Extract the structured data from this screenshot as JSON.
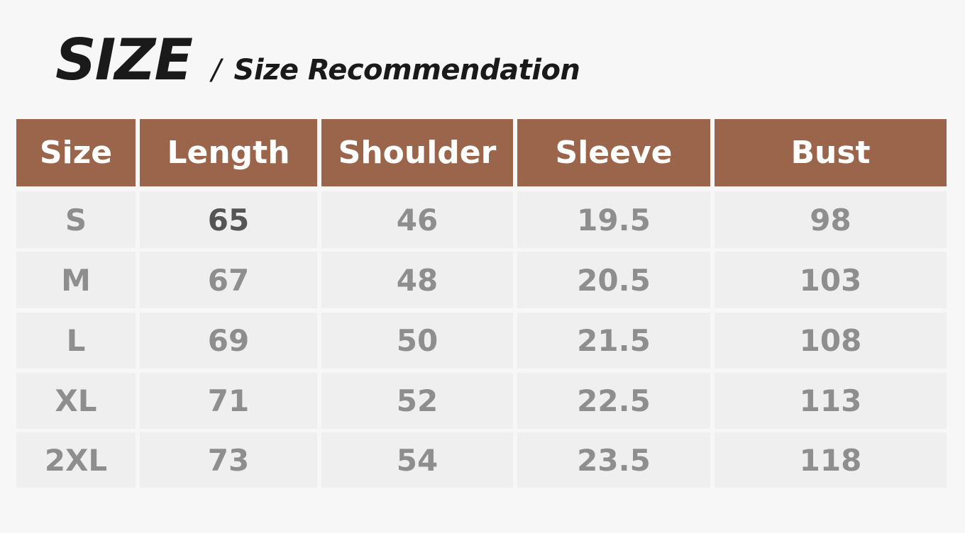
{
  "title": {
    "main": "SIZE",
    "separator": "/",
    "subtitle": "Size Recommendation"
  },
  "colors": {
    "header_bg": "#9a654a",
    "cell_bg": "#efefef",
    "text_gray": "#8e8e8e"
  },
  "table": {
    "headers": [
      "Size",
      "Length",
      "Shoulder",
      "Sleeve",
      "Bust"
    ],
    "rows": [
      [
        "S",
        "65",
        "46",
        "19.5",
        "98"
      ],
      [
        "M",
        "67",
        "48",
        "20.5",
        "103"
      ],
      [
        "L",
        "69",
        "50",
        "21.5",
        "108"
      ],
      [
        "XL",
        "71",
        "52",
        "22.5",
        "113"
      ],
      [
        "2XL",
        "73",
        "54",
        "23.5",
        "118"
      ]
    ]
  }
}
